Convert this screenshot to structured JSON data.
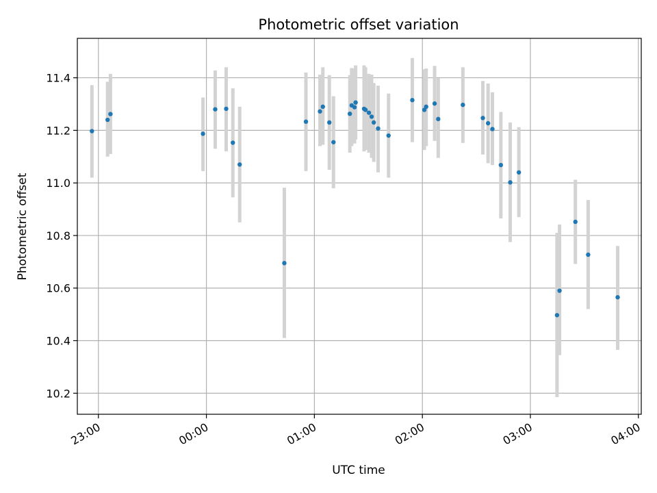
{
  "chart_data": {
    "type": "scatter",
    "title": "Photometric offset variation",
    "xlabel": "UTC time",
    "ylabel": "Photometric offset",
    "x_unit": "minutes relative to 00:00 UTC",
    "xlim": [
      -71.7,
      241.6
    ],
    "ylim": [
      10.12,
      11.55
    ],
    "grid": true,
    "xticks": [
      {
        "value": -60,
        "label": "23:00"
      },
      {
        "value": 0,
        "label": "00:00"
      },
      {
        "value": 60,
        "label": "01:00"
      },
      {
        "value": 120,
        "label": "02:00"
      },
      {
        "value": 180,
        "label": "03:00"
      },
      {
        "value": 240,
        "label": "04:00"
      }
    ],
    "yticks": [
      {
        "value": 10.2,
        "label": "10.2"
      },
      {
        "value": 10.4,
        "label": "10.4"
      },
      {
        "value": 10.6,
        "label": "10.6"
      },
      {
        "value": 10.8,
        "label": "10.8"
      },
      {
        "value": 11.0,
        "label": "11.0"
      },
      {
        "value": 11.2,
        "label": "11.2"
      },
      {
        "value": 11.4,
        "label": "11.4"
      }
    ],
    "point_color": "#1f77b4",
    "errorbar_color": "#d3d3d3",
    "series": [
      {
        "points": [
          {
            "t": -63.6,
            "y": 11.197,
            "lo": 11.02,
            "hi": 11.372
          },
          {
            "t": -54.9,
            "y": 11.24,
            "lo": 11.1,
            "hi": 11.385
          },
          {
            "t": -53.3,
            "y": 11.262,
            "lo": 11.11,
            "hi": 11.415
          },
          {
            "t": -1.9,
            "y": 11.187,
            "lo": 11.045,
            "hi": 11.325
          },
          {
            "t": 4.9,
            "y": 11.28,
            "lo": 11.13,
            "hi": 11.428
          },
          {
            "t": 11.0,
            "y": 11.282,
            "lo": 11.12,
            "hi": 11.44
          },
          {
            "t": 14.7,
            "y": 11.153,
            "lo": 10.945,
            "hi": 11.36
          },
          {
            "t": 18.5,
            "y": 11.07,
            "lo": 10.85,
            "hi": 11.29
          },
          {
            "t": 43.3,
            "y": 10.695,
            "lo": 10.41,
            "hi": 10.982
          },
          {
            "t": 55.3,
            "y": 11.233,
            "lo": 11.045,
            "hi": 11.42
          },
          {
            "t": 63.1,
            "y": 11.272,
            "lo": 11.14,
            "hi": 11.412
          },
          {
            "t": 64.7,
            "y": 11.29,
            "lo": 11.145,
            "hi": 11.44
          },
          {
            "t": 68.3,
            "y": 11.23,
            "lo": 11.05,
            "hi": 11.41
          },
          {
            "t": 70.6,
            "y": 11.155,
            "lo": 10.98,
            "hi": 11.33
          },
          {
            "t": 79.7,
            "y": 11.263,
            "lo": 11.115,
            "hi": 11.41
          },
          {
            "t": 80.7,
            "y": 11.295,
            "lo": 11.14,
            "hi": 11.437
          },
          {
            "t": 82.3,
            "y": 11.288,
            "lo": 11.15,
            "hi": 11.435
          },
          {
            "t": 82.9,
            "y": 11.306,
            "lo": 11.165,
            "hi": 11.447
          },
          {
            "t": 87.6,
            "y": 11.282,
            "lo": 11.12,
            "hi": 11.447
          },
          {
            "t": 88.4,
            "y": 11.278,
            "lo": 11.125,
            "hi": 11.44
          },
          {
            "t": 90.3,
            "y": 11.267,
            "lo": 11.115,
            "hi": 11.415
          },
          {
            "t": 91.8,
            "y": 11.252,
            "lo": 11.095,
            "hi": 11.412
          },
          {
            "t": 93.0,
            "y": 11.23,
            "lo": 11.08,
            "hi": 11.38
          },
          {
            "t": 95.4,
            "y": 11.207,
            "lo": 11.04,
            "hi": 11.37
          },
          {
            "t": 101.2,
            "y": 11.18,
            "lo": 11.02,
            "hi": 11.34
          },
          {
            "t": 114.4,
            "y": 11.315,
            "lo": 11.155,
            "hi": 11.475
          },
          {
            "t": 121.1,
            "y": 11.278,
            "lo": 11.125,
            "hi": 11.432
          },
          {
            "t": 122.1,
            "y": 11.29,
            "lo": 11.14,
            "hi": 11.435
          },
          {
            "t": 126.8,
            "y": 11.302,
            "lo": 11.16,
            "hi": 11.445
          },
          {
            "t": 128.8,
            "y": 11.243,
            "lo": 11.095,
            "hi": 11.398
          },
          {
            "t": 142.5,
            "y": 11.297,
            "lo": 11.152,
            "hi": 11.44
          },
          {
            "t": 153.6,
            "y": 11.247,
            "lo": 11.108,
            "hi": 11.388
          },
          {
            "t": 156.5,
            "y": 11.227,
            "lo": 11.075,
            "hi": 11.378
          },
          {
            "t": 158.9,
            "y": 11.205,
            "lo": 11.068,
            "hi": 11.345
          },
          {
            "t": 163.6,
            "y": 11.068,
            "lo": 10.865,
            "hi": 11.27
          },
          {
            "t": 168.8,
            "y": 11.002,
            "lo": 10.775,
            "hi": 11.23
          },
          {
            "t": 173.6,
            "y": 11.04,
            "lo": 10.87,
            "hi": 11.212
          },
          {
            "t": 194.8,
            "y": 10.497,
            "lo": 10.185,
            "hi": 10.81
          },
          {
            "t": 196.2,
            "y": 10.59,
            "lo": 10.345,
            "hi": 10.842
          },
          {
            "t": 205.0,
            "y": 10.852,
            "lo": 10.692,
            "hi": 11.012
          },
          {
            "t": 212.1,
            "y": 10.727,
            "lo": 10.52,
            "hi": 10.935
          },
          {
            "t": 228.5,
            "y": 10.565,
            "lo": 10.365,
            "hi": 10.76
          }
        ]
      }
    ]
  }
}
